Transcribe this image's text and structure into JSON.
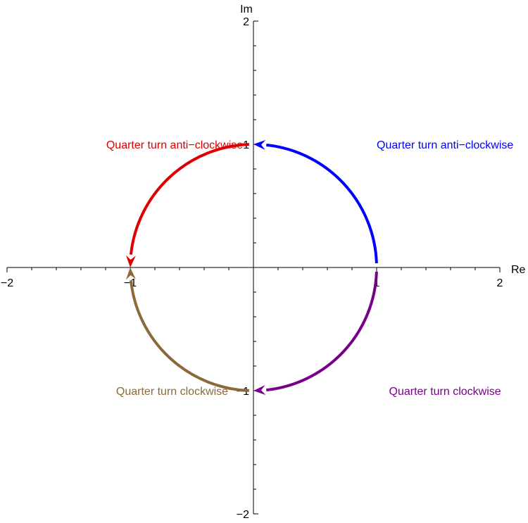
{
  "axes": {
    "x_label": "Re",
    "y_label": "Im",
    "x_range": [
      -2,
      2
    ],
    "y_range": [
      -2,
      2
    ],
    "x_tick_labels": [
      {
        "value": -2,
        "text": "−2"
      },
      {
        "value": -1,
        "text": "−1"
      },
      {
        "value": 1,
        "text": "1"
      },
      {
        "value": 2,
        "text": "2"
      }
    ],
    "y_tick_labels": [
      {
        "value": 2,
        "text": "2"
      },
      {
        "value": 1,
        "text": "1"
      },
      {
        "value": -1,
        "text": "−1"
      },
      {
        "value": -2,
        "text": "−2"
      }
    ],
    "minor_tick_step": 0.2
  },
  "arcs": [
    {
      "id": "blue",
      "from_deg": 0,
      "to_deg": 90,
      "direction": "anti-clockwise",
      "color": "#0000ff",
      "label": "Quarter turn anti−clockwise",
      "label_side": "right",
      "label_value": [
        1.0,
        1.0
      ]
    },
    {
      "id": "red",
      "from_deg": 90,
      "to_deg": 180,
      "direction": "anti-clockwise",
      "color": "#dd0000",
      "label": "Quarter turn anti−clockwise",
      "label_side": "left",
      "label_value": [
        -0.64,
        1.0
      ]
    },
    {
      "id": "purple",
      "from_deg": 0,
      "to_deg": -90,
      "direction": "clockwise",
      "color": "#770088",
      "label": "Quarter turn clockwise",
      "label_side": "right",
      "label_value": [
        1.1,
        -1.0
      ]
    },
    {
      "id": "brown",
      "from_deg": -90,
      "to_deg": -180,
      "direction": "clockwise",
      "color": "#8b6a3a",
      "label": "Quarter turn clockwise",
      "label_side": "left",
      "label_value": [
        -0.66,
        -1.0
      ]
    }
  ]
}
